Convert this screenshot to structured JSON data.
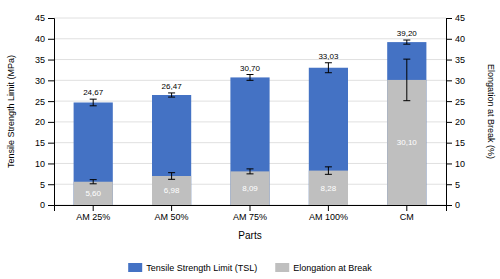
{
  "chart_data": {
    "type": "bar",
    "xlabel": "Parts",
    "ylabel": "Tensile Strength Limit (MPa)",
    "y2label": "Elongation at Break (%)",
    "categories": [
      "AM 25%",
      "AM 50%",
      "AM 75%",
      "AM 100%",
      "CM"
    ],
    "series": [
      {
        "name": "Tensile Strength Limit (TSL)",
        "color": "#4472C4",
        "values": [
          24.67,
          26.47,
          30.7,
          33.03,
          39.2
        ],
        "errors": [
          0.8,
          0.5,
          0.7,
          1.2,
          0.5
        ],
        "value_labels": [
          "24,67",
          "26,47",
          "30,70",
          "33,03",
          "39,20"
        ]
      },
      {
        "name": "Elongation at Break",
        "color": "#BFBFBF",
        "values": [
          5.6,
          6.98,
          8.09,
          8.28,
          30.1
        ],
        "errors": [
          0.5,
          0.8,
          0.6,
          0.9,
          5.0
        ],
        "value_labels": [
          "5,60",
          "6,98",
          "8,09",
          "8,28",
          "30,10"
        ]
      }
    ],
    "ylim": [
      0,
      45
    ],
    "yticks": [
      0,
      5,
      10,
      15,
      20,
      25,
      30,
      35,
      40,
      45
    ],
    "y2lim": [
      0,
      45
    ],
    "y2ticks": [
      0,
      5,
      10,
      15,
      20,
      25,
      30,
      35,
      40,
      45
    ],
    "grid": true,
    "legend": "bottom",
    "data_labels": true
  }
}
